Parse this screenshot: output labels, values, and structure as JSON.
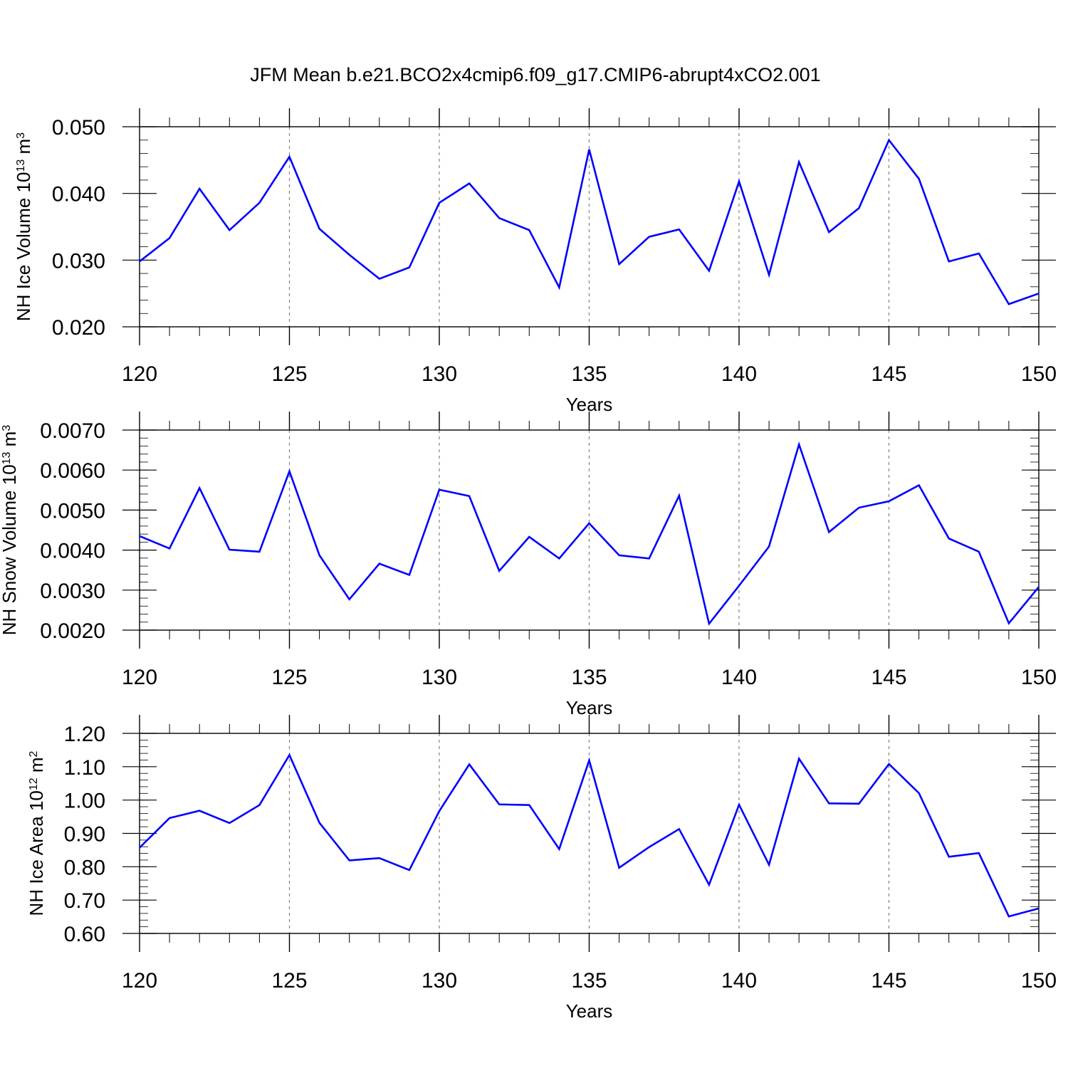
{
  "title": "JFM Mean b.e21.BCO2x4cmip6.f09_g17.CMIP6-abrupt4xCO2.001",
  "colors": {
    "line": "#0000ff",
    "axis": "#000000",
    "grid": "#808080"
  },
  "chart_data": [
    {
      "type": "line",
      "ylabel_parts": [
        "NH Ice Volume 10",
        "13",
        " m",
        "3"
      ],
      "xlabel": "Years",
      "xlim": [
        120,
        150
      ],
      "ylim": [
        0.02,
        0.05
      ],
      "x_ticks": [
        120,
        125,
        130,
        135,
        140,
        145,
        150
      ],
      "y_ticks": [
        "0.020",
        "0.030",
        "0.040",
        "0.050"
      ],
      "y_tick_values": [
        0.02,
        0.03,
        0.04,
        0.05
      ],
      "y_minor_step": 0.002,
      "x": [
        120,
        121,
        122,
        123,
        124,
        125,
        126,
        127,
        128,
        129,
        130,
        131,
        132,
        133,
        134,
        135,
        136,
        137,
        138,
        139,
        140,
        141,
        142,
        143,
        144,
        145,
        146,
        147,
        148,
        149,
        150
      ],
      "values": [
        0.0298,
        0.0333,
        0.0407,
        0.0345,
        0.0386,
        0.0455,
        0.0347,
        0.0308,
        0.0272,
        0.0289,
        0.0386,
        0.0415,
        0.0363,
        0.0345,
        0.0259,
        0.0466,
        0.0294,
        0.0335,
        0.0346,
        0.0284,
        0.0418,
        0.0278,
        0.0447,
        0.0342,
        0.0378,
        0.048,
        0.0422,
        0.0298,
        0.031,
        0.0234,
        0.025
      ]
    },
    {
      "type": "line",
      "ylabel_parts": [
        "NH Snow Volume 10",
        "13",
        " m",
        "3"
      ],
      "xlabel": "Years",
      "xlim": [
        120,
        150
      ],
      "ylim": [
        0.002,
        0.007
      ],
      "x_ticks": [
        120,
        125,
        130,
        135,
        140,
        145,
        150
      ],
      "y_ticks": [
        "0.0020",
        "0.0030",
        "0.0040",
        "0.0050",
        "0.0060",
        "0.0070"
      ],
      "y_tick_values": [
        0.002,
        0.003,
        0.004,
        0.005,
        0.006,
        0.007
      ],
      "y_minor_step": 0.0002,
      "x": [
        120,
        121,
        122,
        123,
        124,
        125,
        126,
        127,
        128,
        129,
        130,
        131,
        132,
        133,
        134,
        135,
        136,
        137,
        138,
        139,
        140,
        141,
        142,
        143,
        144,
        145,
        146,
        147,
        148,
        149,
        150
      ],
      "values": [
        0.00435,
        0.00404,
        0.00555,
        0.00401,
        0.00396,
        0.00597,
        0.00387,
        0.00277,
        0.00366,
        0.00338,
        0.00551,
        0.00535,
        0.00348,
        0.00433,
        0.00379,
        0.00467,
        0.00387,
        0.00379,
        0.00536,
        0.00216,
        0.00311,
        0.00409,
        0.00664,
        0.00445,
        0.00506,
        0.00522,
        0.00562,
        0.00429,
        0.00396,
        0.00217,
        0.00308
      ]
    },
    {
      "type": "line",
      "ylabel_parts": [
        "NH Ice Area 10",
        "12",
        " m",
        "2"
      ],
      "xlabel": "Years",
      "xlim": [
        120,
        150
      ],
      "ylim": [
        0.6,
        1.2
      ],
      "x_ticks": [
        120,
        125,
        130,
        135,
        140,
        145,
        150
      ],
      "y_ticks": [
        "0.60",
        "0.70",
        "0.80",
        "0.90",
        "1.00",
        "1.10",
        "1.20"
      ],
      "y_tick_values": [
        0.6,
        0.7,
        0.8,
        0.9,
        1.0,
        1.1,
        1.2
      ],
      "y_minor_step": 0.02,
      "x": [
        120,
        121,
        122,
        123,
        124,
        125,
        126,
        127,
        128,
        129,
        130,
        131,
        132,
        133,
        134,
        135,
        136,
        137,
        138,
        139,
        140,
        141,
        142,
        143,
        144,
        145,
        146,
        147,
        148,
        149,
        150
      ],
      "values": [
        0.857,
        0.946,
        0.968,
        0.931,
        0.985,
        1.135,
        0.932,
        0.819,
        0.826,
        0.79,
        0.967,
        1.107,
        0.987,
        0.985,
        0.853,
        1.119,
        0.797,
        0.859,
        0.913,
        0.746,
        0.986,
        0.806,
        1.124,
        0.99,
        0.989,
        1.108,
        1.021,
        0.83,
        0.841,
        0.651,
        0.675
      ]
    }
  ]
}
